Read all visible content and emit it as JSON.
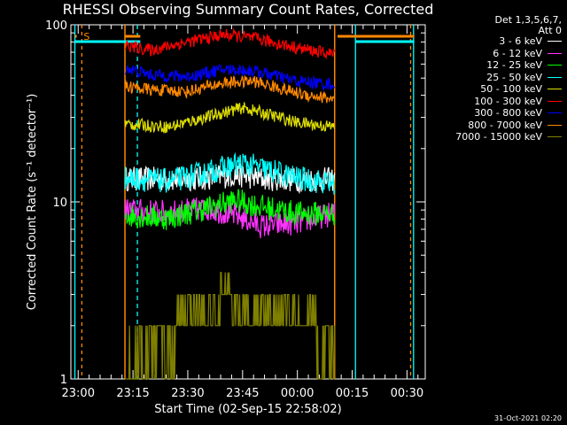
{
  "chart_data": {
    "type": "line",
    "title": "RHESSI Observing Summary Count Rates, Corrected",
    "xlabel": "Start Time (02-Sep-15 22:58:02)",
    "ylabel": "Corrected Count Rate (s⁻¹ detector⁻¹)",
    "yscale": "log",
    "ylim": [
      1,
      100
    ],
    "xlim_minutes_from_2300": [
      -2,
      95
    ],
    "xticks": [
      {
        "label": "23:00",
        "minutes": 0
      },
      {
        "label": "23:15",
        "minutes": 15
      },
      {
        "label": "23:30",
        "minutes": 30
      },
      {
        "label": "23:45",
        "minutes": 45
      },
      {
        "label": "00:00",
        "minutes": 60
      },
      {
        "label": "00:15",
        "minutes": 75
      },
      {
        "label": "00:30",
        "minutes": 90
      }
    ],
    "yticks": [
      {
        "label": "1",
        "value": 1
      },
      {
        "label": "10",
        "value": 10
      },
      {
        "label": "100",
        "value": 100
      }
    ],
    "grid": false,
    "legend_position": "right",
    "legend_header": [
      "Det 1,3,5,6,7,",
      "Att 0"
    ],
    "timestamp": "31-Oct-2021 02:20",
    "data_interval_minutes": [
      12.8,
      70.2
    ],
    "series": [
      {
        "name": "3 - 6 keV",
        "color": "#ffffff",
        "points": [
          [
            13,
            13.5
          ],
          [
            25,
            13.4
          ],
          [
            35,
            13.6
          ],
          [
            43,
            14.2
          ],
          [
            50,
            13.6
          ],
          [
            60,
            13.3
          ],
          [
            70,
            13.4
          ]
        ]
      },
      {
        "name": "6 - 12 keV",
        "color": "#ff33ff",
        "points": [
          [
            13,
            9.0
          ],
          [
            25,
            8.7
          ],
          [
            35,
            9.2
          ],
          [
            43,
            8.4
          ],
          [
            50,
            7.3
          ],
          [
            60,
            7.6
          ],
          [
            70,
            8.6
          ]
        ]
      },
      {
        "name": "12 - 25 keV",
        "color": "#00ff00",
        "points": [
          [
            13,
            8.4
          ],
          [
            25,
            8.1
          ],
          [
            35,
            9.2
          ],
          [
            43,
            10.2
          ],
          [
            50,
            9.4
          ],
          [
            60,
            8.6
          ],
          [
            70,
            8.6
          ]
        ]
      },
      {
        "name": "25 - 50 keV",
        "color": "#00ffff",
        "points": [
          [
            13,
            13.6
          ],
          [
            25,
            13.1
          ],
          [
            35,
            14.6
          ],
          [
            45,
            16.5
          ],
          [
            50,
            15.5
          ],
          [
            60,
            13.6
          ],
          [
            70,
            12.7
          ]
        ]
      },
      {
        "name": "50 - 100 keV",
        "color": "#dddd00",
        "points": [
          [
            13,
            27.5
          ],
          [
            25,
            26.5
          ],
          [
            35,
            30.0
          ],
          [
            45,
            34.0
          ],
          [
            50,
            32.0
          ],
          [
            60,
            28.0
          ],
          [
            70,
            26.5
          ]
        ]
      },
      {
        "name": "100 - 300 keV",
        "color": "#ff0000",
        "points": [
          [
            13,
            76.0
          ],
          [
            20,
            72.0
          ],
          [
            30,
            80.0
          ],
          [
            40,
            88.0
          ],
          [
            48,
            84.0
          ],
          [
            60,
            74.0
          ],
          [
            70,
            68.0
          ]
        ]
      },
      {
        "name": "300 - 800 keV",
        "color": "#0000ff",
        "points": [
          [
            13,
            57.0
          ],
          [
            20,
            52.0
          ],
          [
            30,
            51.0
          ],
          [
            40,
            56.0
          ],
          [
            48,
            55.0
          ],
          [
            60,
            48.0
          ],
          [
            70,
            46.0
          ]
        ]
      },
      {
        "name": "800 - 7000 keV",
        "color": "#ff8800",
        "points": [
          [
            13,
            45.0
          ],
          [
            20,
            43.0
          ],
          [
            30,
            42.0
          ],
          [
            40,
            47.0
          ],
          [
            48,
            48.0
          ],
          [
            60,
            41.0
          ],
          [
            70,
            38.0
          ]
        ]
      },
      {
        "name": "7000 - 15000 keV",
        "color": "#808000",
        "points": [
          [
            13,
            1.0
          ],
          [
            30,
            2.0
          ],
          [
            40,
            2.9
          ],
          [
            50,
            2.4
          ],
          [
            60,
            2.0
          ],
          [
            70,
            1.6
          ]
        ]
      }
    ],
    "annotations": [
      {
        "text": "S",
        "color": "#ff8800",
        "minutes": 1.5
      }
    ]
  }
}
